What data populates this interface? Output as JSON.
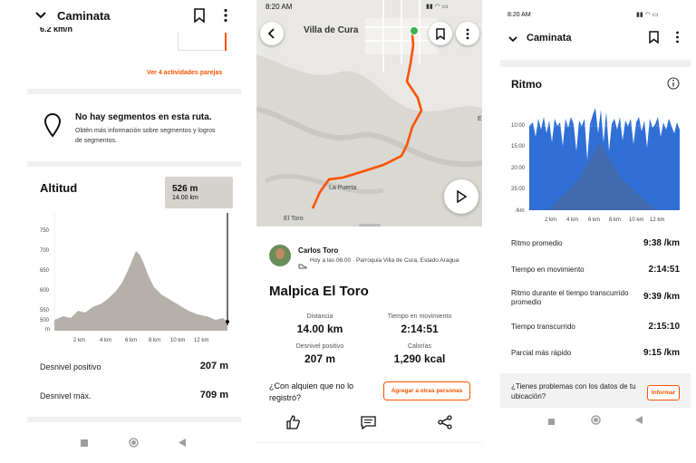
{
  "left": {
    "title": "Caminata",
    "partial_speed": "6.2 km/h",
    "similar_link": "Ver 4 actividades parejas",
    "segments": {
      "title": "No hay segmentos en esta ruta.",
      "desc": "Obtén más información sobre segmentos y logros de segmentos."
    },
    "altitude": {
      "title": "Altitud",
      "tooltip_value": "526 m",
      "tooltip_dist": "14.00 km",
      "y_ticks": [
        "750",
        "700",
        "650",
        "600",
        "550",
        "500"
      ],
      "y_unit": "m",
      "x_ticks": [
        "2 km",
        "4 km",
        "6 km",
        "8 km",
        "10 km",
        "12 km"
      ]
    },
    "stats": [
      {
        "label": "Desnivel positivo",
        "value": "207 m"
      },
      {
        "label": "Desnivel máx.",
        "value": "709 m"
      }
    ]
  },
  "middle": {
    "status_time": "8:20 AM",
    "map_labels": {
      "town": "Villa de Cura",
      "place1": "La Puerta",
      "place2": "El Toro",
      "edge": "E"
    },
    "athlete": {
      "name": "Carlos Toro",
      "meta": "Hoy a las 06:00 · Parroquia Villa de Cura, Estado Aragua"
    },
    "activity_title": "Malpica El Toro",
    "stats": [
      {
        "label": "Distancia",
        "value": "14.00 km"
      },
      {
        "label": "Tiempo en movimiento",
        "value": "2:14:51"
      },
      {
        "label": "Desnivel positivo",
        "value": "207 m"
      },
      {
        "label": "Calorías",
        "value": "1,290 kcal"
      }
    ],
    "invite_question": "¿Con alquien que no lo registró?",
    "invite_button": "Agregar a otras personas"
  },
  "right": {
    "status_time": "8:20 AM",
    "title": "Caminata",
    "pace": {
      "title": "Ritmo",
      "y_ticks": [
        "10:00",
        "15:00",
        "20:00",
        "25:00"
      ],
      "y_unit": "/km",
      "x_ticks": [
        "2 km",
        "4 km",
        "6 km",
        "8 km",
        "10 km",
        "12 km"
      ]
    },
    "rows": [
      {
        "label": "Ritmo promedio",
        "value": "9:38 /km"
      },
      {
        "label": "Tiempo en movimiento",
        "value": "2:14:51"
      },
      {
        "label": "Ritmo durante el tiempo transcurrido promedio",
        "value": "9:39 /km"
      },
      {
        "label": "Tiempo transcurrido",
        "value": "2:15:10"
      },
      {
        "label": "Parcial más rápido",
        "value": "9:15 /km"
      }
    ],
    "problem_text": "¿Tienes problemas con los datos de tu ubicación?",
    "report_button": "Informar"
  },
  "colors": {
    "accent": "#fc5200",
    "pace_blue": "#2f6fd6",
    "elev_gray": "#b5b1aa"
  }
}
